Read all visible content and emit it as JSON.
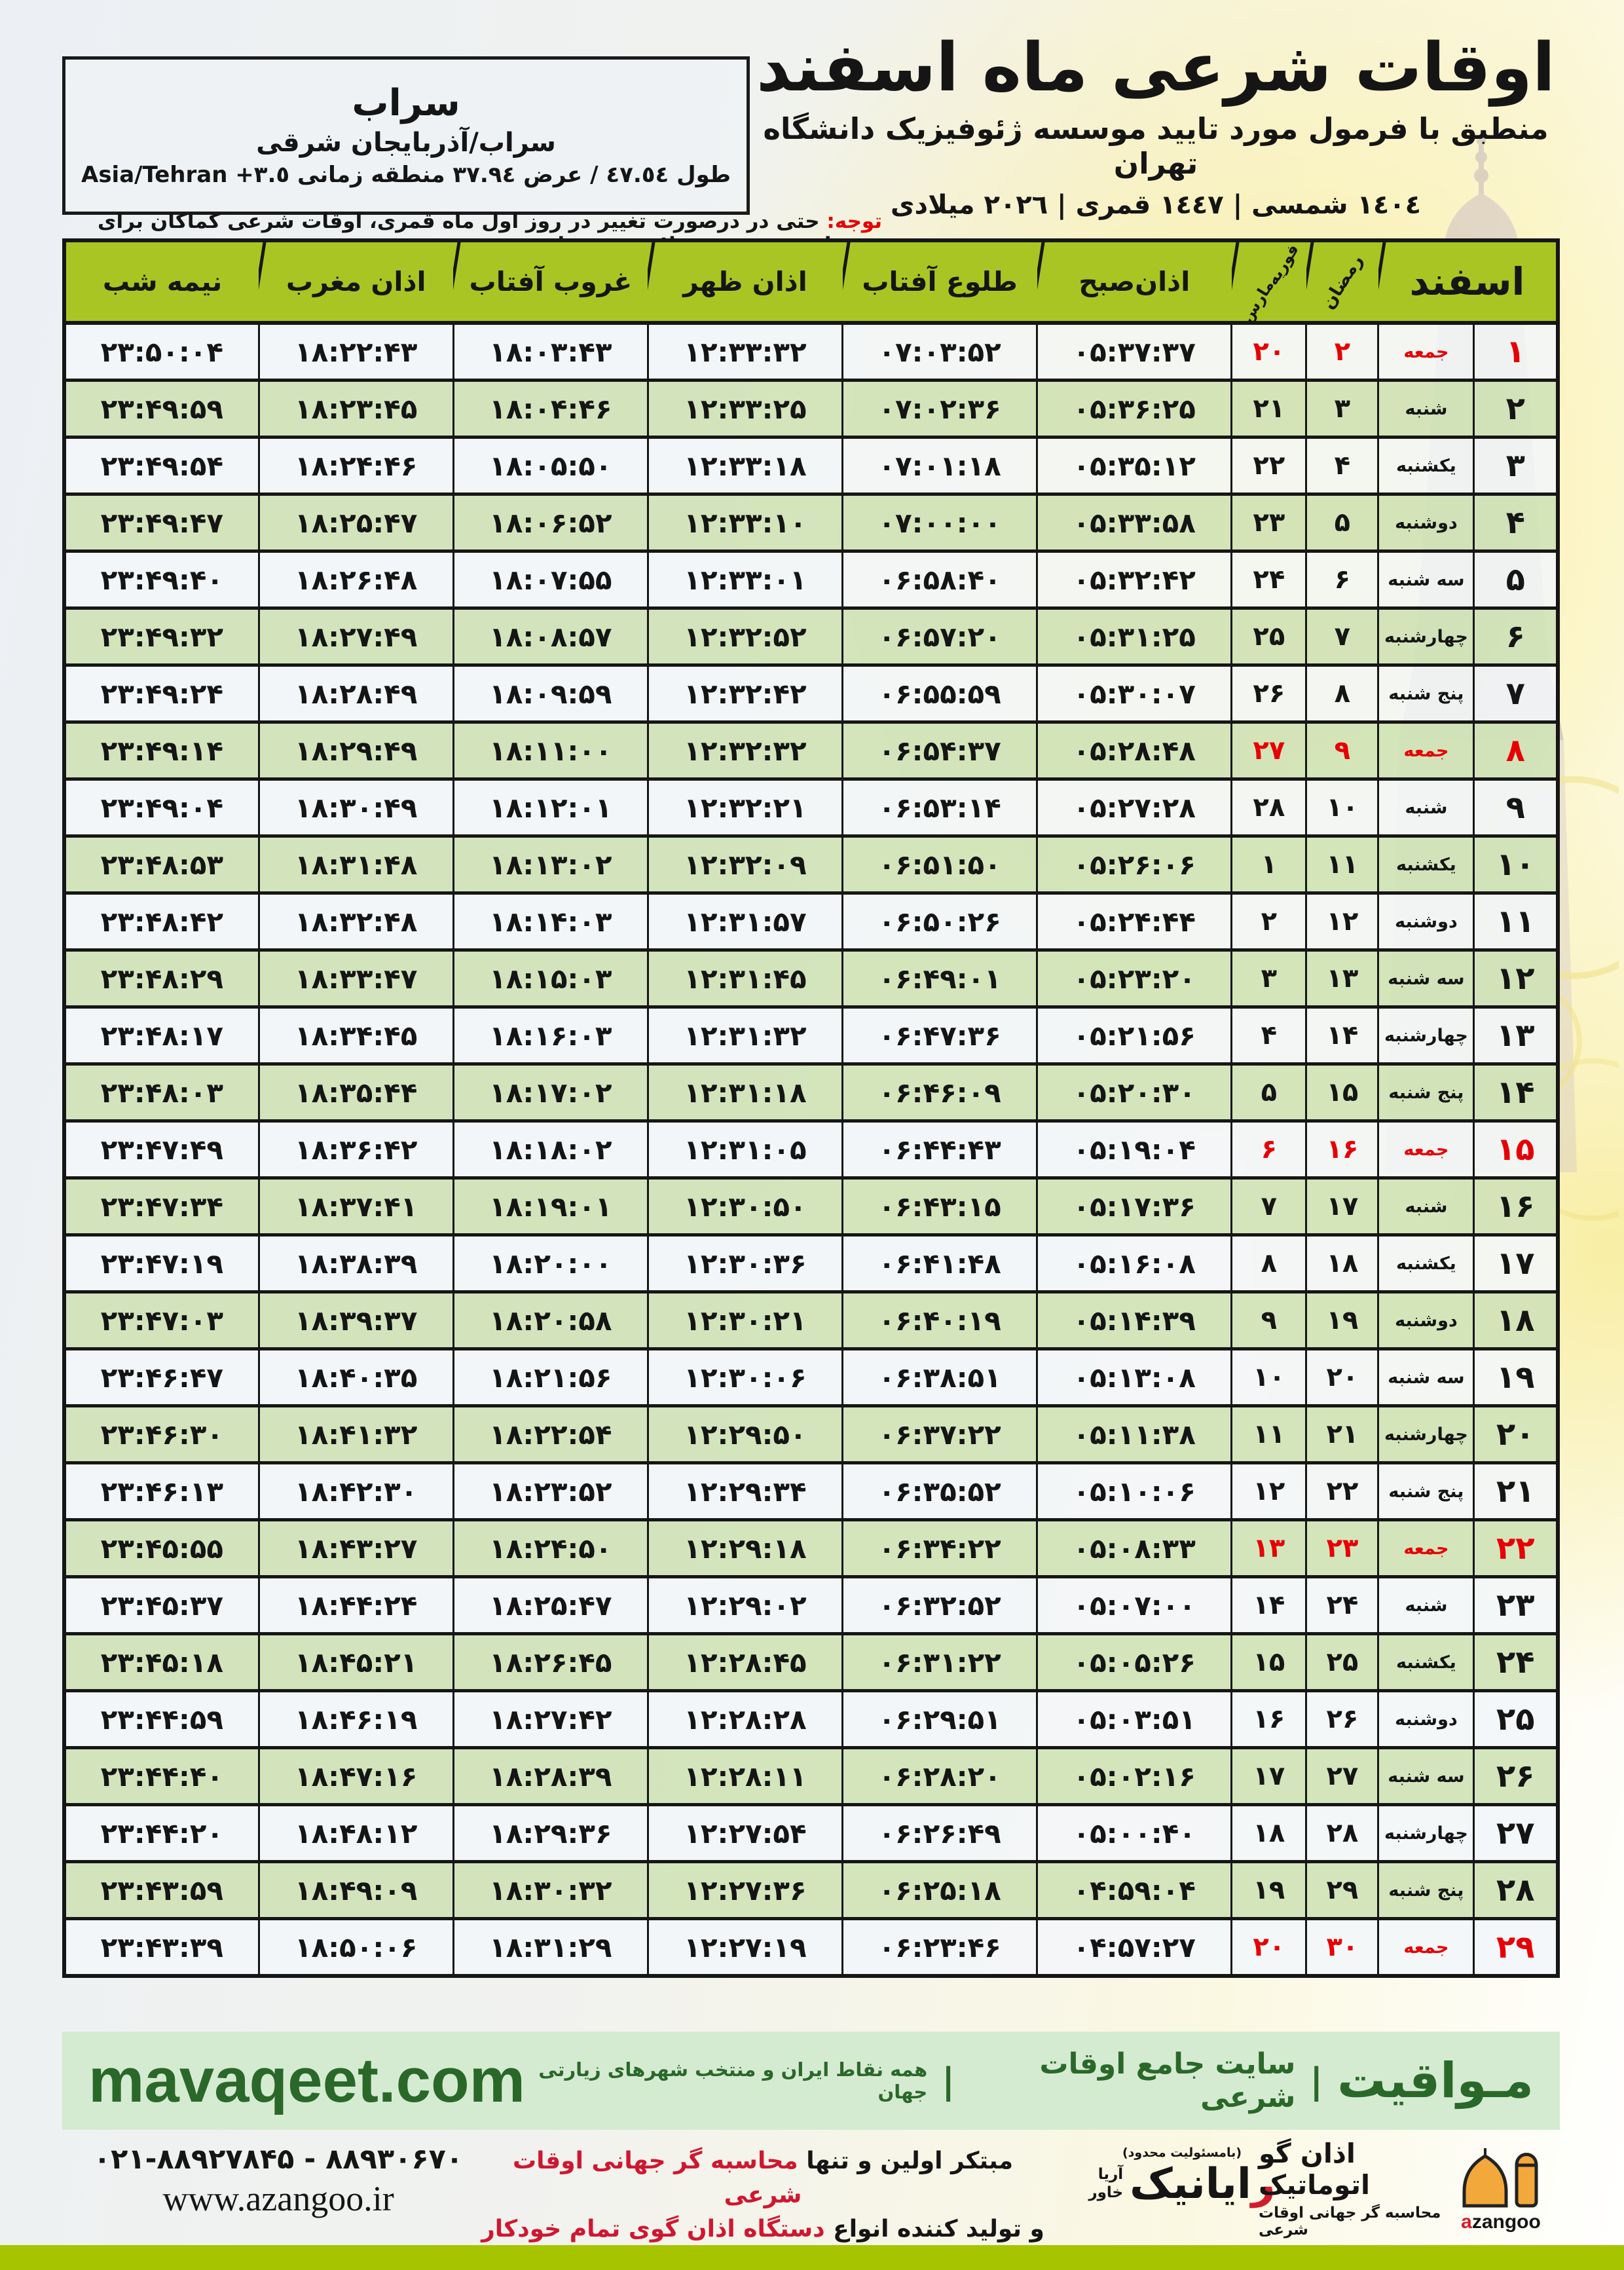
{
  "header": {
    "title": "اوقات شرعی ماه اسفند",
    "subtitle": "منطبق با فرمول مورد تایید موسسه ژئوفیزیک دانشگاه تهران",
    "date_line": "١٤٠٤ شمسی | ١٤٤٧ قمری | ٢٠٢٦ میلادی"
  },
  "city_box": {
    "city": "سراب",
    "region": "سراب/آذربایجان شرقی",
    "coords_rtl": "طول ٤٧.٥٤ / عرض ٣٧.٩٤ منطقه زمانی",
    "coords_ltr": "Asia/Tehran +٣.٥"
  },
  "notice": {
    "label": "توجه:",
    "text": "حتی در درصورت تغییر در روز اول ماه قمری، اوقات شرعی کماکان برای روزهای شمسی و میلادی معتبر است."
  },
  "table": {
    "headers": {
      "month": "اسفند",
      "ramadan": "رمضان",
      "february": "فوریه",
      "march": "مارس",
      "fajr": "اذان‌صبح",
      "sunrise": "طلوع آفتاب",
      "dhuhr": "اذان ظهر",
      "sunset": "غروب آفتاب",
      "maghrib": "اذان مغرب",
      "midnight": "نیمه شب"
    },
    "rows": [
      {
        "day": "۱",
        "weekday": "جمعه",
        "ramadan": "۲",
        "febmar": "۲۰",
        "fajr": "۰۵:۳۷:۳۷",
        "sunrise": "۰۷:۰۳:۵۲",
        "dhuhr": "۱۲:۳۳:۳۲",
        "sunset": "۱۸:۰۳:۴۳",
        "maghrib": "۱۸:۲۲:۴۳",
        "midnight": "۲۳:۵۰:۰۴",
        "friday": true
      },
      {
        "day": "۲",
        "weekday": "شنبه",
        "ramadan": "۳",
        "febmar": "۲۱",
        "fajr": "۰۵:۳۶:۲۵",
        "sunrise": "۰۷:۰۲:۳۶",
        "dhuhr": "۱۲:۳۳:۲۵",
        "sunset": "۱۸:۰۴:۴۶",
        "maghrib": "۱۸:۲۳:۴۵",
        "midnight": "۲۳:۴۹:۵۹",
        "friday": false
      },
      {
        "day": "۳",
        "weekday": "یکشنبه",
        "ramadan": "۴",
        "febmar": "۲۲",
        "fajr": "۰۵:۳۵:۱۲",
        "sunrise": "۰۷:۰۱:۱۸",
        "dhuhr": "۱۲:۳۳:۱۸",
        "sunset": "۱۸:۰۵:۵۰",
        "maghrib": "۱۸:۲۴:۴۶",
        "midnight": "۲۳:۴۹:۵۴",
        "friday": false
      },
      {
        "day": "۴",
        "weekday": "دوشنبه",
        "ramadan": "۵",
        "febmar": "۲۳",
        "fajr": "۰۵:۳۳:۵۸",
        "sunrise": "۰۷:۰۰:۰۰",
        "dhuhr": "۱۲:۳۳:۱۰",
        "sunset": "۱۸:۰۶:۵۲",
        "maghrib": "۱۸:۲۵:۴۷",
        "midnight": "۲۳:۴۹:۴۷",
        "friday": false
      },
      {
        "day": "۵",
        "weekday": "سه شنبه",
        "ramadan": "۶",
        "febmar": "۲۴",
        "fajr": "۰۵:۳۲:۴۲",
        "sunrise": "۰۶:۵۸:۴۰",
        "dhuhr": "۱۲:۳۳:۰۱",
        "sunset": "۱۸:۰۷:۵۵",
        "maghrib": "۱۸:۲۶:۴۸",
        "midnight": "۲۳:۴۹:۴۰",
        "friday": false
      },
      {
        "day": "۶",
        "weekday": "چهارشنبه",
        "ramadan": "۷",
        "febmar": "۲۵",
        "fajr": "۰۵:۳۱:۲۵",
        "sunrise": "۰۶:۵۷:۲۰",
        "dhuhr": "۱۲:۳۲:۵۲",
        "sunset": "۱۸:۰۸:۵۷",
        "maghrib": "۱۸:۲۷:۴۹",
        "midnight": "۲۳:۴۹:۳۲",
        "friday": false
      },
      {
        "day": "۷",
        "weekday": "پنج شنبه",
        "ramadan": "۸",
        "febmar": "۲۶",
        "fajr": "۰۵:۳۰:۰۷",
        "sunrise": "۰۶:۵۵:۵۹",
        "dhuhr": "۱۲:۳۲:۴۲",
        "sunset": "۱۸:۰۹:۵۹",
        "maghrib": "۱۸:۲۸:۴۹",
        "midnight": "۲۳:۴۹:۲۴",
        "friday": false
      },
      {
        "day": "۸",
        "weekday": "جمعه",
        "ramadan": "۹",
        "febmar": "۲۷",
        "fajr": "۰۵:۲۸:۴۸",
        "sunrise": "۰۶:۵۴:۳۷",
        "dhuhr": "۱۲:۳۲:۳۲",
        "sunset": "۱۸:۱۱:۰۰",
        "maghrib": "۱۸:۲۹:۴۹",
        "midnight": "۲۳:۴۹:۱۴",
        "friday": true
      },
      {
        "day": "۹",
        "weekday": "شنبه",
        "ramadan": "۱۰",
        "febmar": "۲۸",
        "fajr": "۰۵:۲۷:۲۸",
        "sunrise": "۰۶:۵۳:۱۴",
        "dhuhr": "۱۲:۳۲:۲۱",
        "sunset": "۱۸:۱۲:۰۱",
        "maghrib": "۱۸:۳۰:۴۹",
        "midnight": "۲۳:۴۹:۰۴",
        "friday": false
      },
      {
        "day": "۱۰",
        "weekday": "یکشنبه",
        "ramadan": "۱۱",
        "febmar": "۱",
        "fajr": "۰۵:۲۶:۰۶",
        "sunrise": "۰۶:۵۱:۵۰",
        "dhuhr": "۱۲:۳۲:۰۹",
        "sunset": "۱۸:۱۳:۰۲",
        "maghrib": "۱۸:۳۱:۴۸",
        "midnight": "۲۳:۴۸:۵۳",
        "friday": false
      },
      {
        "day": "۱۱",
        "weekday": "دوشنبه",
        "ramadan": "۱۲",
        "febmar": "۲",
        "fajr": "۰۵:۲۴:۴۴",
        "sunrise": "۰۶:۵۰:۲۶",
        "dhuhr": "۱۲:۳۱:۵۷",
        "sunset": "۱۸:۱۴:۰۳",
        "maghrib": "۱۸:۳۲:۴۸",
        "midnight": "۲۳:۴۸:۴۲",
        "friday": false
      },
      {
        "day": "۱۲",
        "weekday": "سه شنبه",
        "ramadan": "۱۳",
        "febmar": "۳",
        "fajr": "۰۵:۲۳:۲۰",
        "sunrise": "۰۶:۴۹:۰۱",
        "dhuhr": "۱۲:۳۱:۴۵",
        "sunset": "۱۸:۱۵:۰۳",
        "maghrib": "۱۸:۳۳:۴۷",
        "midnight": "۲۳:۴۸:۲۹",
        "friday": false
      },
      {
        "day": "۱۳",
        "weekday": "چهارشنبه",
        "ramadan": "۱۴",
        "febmar": "۴",
        "fajr": "۰۵:۲۱:۵۶",
        "sunrise": "۰۶:۴۷:۳۶",
        "dhuhr": "۱۲:۳۱:۳۲",
        "sunset": "۱۸:۱۶:۰۳",
        "maghrib": "۱۸:۳۴:۴۵",
        "midnight": "۲۳:۴۸:۱۷",
        "friday": false
      },
      {
        "day": "۱۴",
        "weekday": "پنج شنبه",
        "ramadan": "۱۵",
        "febmar": "۵",
        "fajr": "۰۵:۲۰:۳۰",
        "sunrise": "۰۶:۴۶:۰۹",
        "dhuhr": "۱۲:۳۱:۱۸",
        "sunset": "۱۸:۱۷:۰۲",
        "maghrib": "۱۸:۳۵:۴۴",
        "midnight": "۲۳:۴۸:۰۳",
        "friday": false
      },
      {
        "day": "۱۵",
        "weekday": "جمعه",
        "ramadan": "۱۶",
        "febmar": "۶",
        "fajr": "۰۵:۱۹:۰۴",
        "sunrise": "۰۶:۴۴:۴۳",
        "dhuhr": "۱۲:۳۱:۰۵",
        "sunset": "۱۸:۱۸:۰۲",
        "maghrib": "۱۸:۳۶:۴۲",
        "midnight": "۲۳:۴۷:۴۹",
        "friday": true
      },
      {
        "day": "۱۶",
        "weekday": "شنبه",
        "ramadan": "۱۷",
        "febmar": "۷",
        "fajr": "۰۵:۱۷:۳۶",
        "sunrise": "۰۶:۴۳:۱۵",
        "dhuhr": "۱۲:۳۰:۵۰",
        "sunset": "۱۸:۱۹:۰۱",
        "maghrib": "۱۸:۳۷:۴۱",
        "midnight": "۲۳:۴۷:۳۴",
        "friday": false
      },
      {
        "day": "۱۷",
        "weekday": "یکشنبه",
        "ramadan": "۱۸",
        "febmar": "۸",
        "fajr": "۰۵:۱۶:۰۸",
        "sunrise": "۰۶:۴۱:۴۸",
        "dhuhr": "۱۲:۳۰:۳۶",
        "sunset": "۱۸:۲۰:۰۰",
        "maghrib": "۱۸:۳۸:۳۹",
        "midnight": "۲۳:۴۷:۱۹",
        "friday": false
      },
      {
        "day": "۱۸",
        "weekday": "دوشنبه",
        "ramadan": "۱۹",
        "febmar": "۹",
        "fajr": "۰۵:۱۴:۳۹",
        "sunrise": "۰۶:۴۰:۱۹",
        "dhuhr": "۱۲:۳۰:۲۱",
        "sunset": "۱۸:۲۰:۵۸",
        "maghrib": "۱۸:۳۹:۳۷",
        "midnight": "۲۳:۴۷:۰۳",
        "friday": false
      },
      {
        "day": "۱۹",
        "weekday": "سه شنبه",
        "ramadan": "۲۰",
        "febmar": "۱۰",
        "fajr": "۰۵:۱۳:۰۸",
        "sunrise": "۰۶:۳۸:۵۱",
        "dhuhr": "۱۲:۳۰:۰۶",
        "sunset": "۱۸:۲۱:۵۶",
        "maghrib": "۱۸:۴۰:۳۵",
        "midnight": "۲۳:۴۶:۴۷",
        "friday": false
      },
      {
        "day": "۲۰",
        "weekday": "چهارشنبه",
        "ramadan": "۲۱",
        "febmar": "۱۱",
        "fajr": "۰۵:۱۱:۳۸",
        "sunrise": "۰۶:۳۷:۲۲",
        "dhuhr": "۱۲:۲۹:۵۰",
        "sunset": "۱۸:۲۲:۵۴",
        "maghrib": "۱۸:۴۱:۳۲",
        "midnight": "۲۳:۴۶:۳۰",
        "friday": false
      },
      {
        "day": "۲۱",
        "weekday": "پنج شنبه",
        "ramadan": "۲۲",
        "febmar": "۱۲",
        "fajr": "۰۵:۱۰:۰۶",
        "sunrise": "۰۶:۳۵:۵۲",
        "dhuhr": "۱۲:۲۹:۳۴",
        "sunset": "۱۸:۲۳:۵۲",
        "maghrib": "۱۸:۴۲:۳۰",
        "midnight": "۲۳:۴۶:۱۳",
        "friday": false
      },
      {
        "day": "۲۲",
        "weekday": "جمعه",
        "ramadan": "۲۳",
        "febmar": "۱۳",
        "fajr": "۰۵:۰۸:۳۳",
        "sunrise": "۰۶:۳۴:۲۲",
        "dhuhr": "۱۲:۲۹:۱۸",
        "sunset": "۱۸:۲۴:۵۰",
        "maghrib": "۱۸:۴۳:۲۷",
        "midnight": "۲۳:۴۵:۵۵",
        "friday": true
      },
      {
        "day": "۲۳",
        "weekday": "شنبه",
        "ramadan": "۲۴",
        "febmar": "۱۴",
        "fajr": "۰۵:۰۷:۰۰",
        "sunrise": "۰۶:۳۲:۵۲",
        "dhuhr": "۱۲:۲۹:۰۲",
        "sunset": "۱۸:۲۵:۴۷",
        "maghrib": "۱۸:۴۴:۲۴",
        "midnight": "۲۳:۴۵:۳۷",
        "friday": false
      },
      {
        "day": "۲۴",
        "weekday": "یکشنبه",
        "ramadan": "۲۵",
        "febmar": "۱۵",
        "fajr": "۰۵:۰۵:۲۶",
        "sunrise": "۰۶:۳۱:۲۲",
        "dhuhr": "۱۲:۲۸:۴۵",
        "sunset": "۱۸:۲۶:۴۵",
        "maghrib": "۱۸:۴۵:۲۱",
        "midnight": "۲۳:۴۵:۱۸",
        "friday": false
      },
      {
        "day": "۲۵",
        "weekday": "دوشنبه",
        "ramadan": "۲۶",
        "febmar": "۱۶",
        "fajr": "۰۵:۰۳:۵۱",
        "sunrise": "۰۶:۲۹:۵۱",
        "dhuhr": "۱۲:۲۸:۲۸",
        "sunset": "۱۸:۲۷:۴۲",
        "maghrib": "۱۸:۴۶:۱۹",
        "midnight": "۲۳:۴۴:۵۹",
        "friday": false
      },
      {
        "day": "۲۶",
        "weekday": "سه شنبه",
        "ramadan": "۲۷",
        "febmar": "۱۷",
        "fajr": "۰۵:۰۲:۱۶",
        "sunrise": "۰۶:۲۸:۲۰",
        "dhuhr": "۱۲:۲۸:۱۱",
        "sunset": "۱۸:۲۸:۳۹",
        "maghrib": "۱۸:۴۷:۱۶",
        "midnight": "۲۳:۴۴:۴۰",
        "friday": false
      },
      {
        "day": "۲۷",
        "weekday": "چهارشنبه",
        "ramadan": "۲۸",
        "febmar": "۱۸",
        "fajr": "۰۵:۰۰:۴۰",
        "sunrise": "۰۶:۲۶:۴۹",
        "dhuhr": "۱۲:۲۷:۵۴",
        "sunset": "۱۸:۲۹:۳۶",
        "maghrib": "۱۸:۴۸:۱۲",
        "midnight": "۲۳:۴۴:۲۰",
        "friday": false
      },
      {
        "day": "۲۸",
        "weekday": "پنج شنبه",
        "ramadan": "۲۹",
        "febmar": "۱۹",
        "fajr": "۰۴:۵۹:۰۴",
        "sunrise": "۰۶:۲۵:۱۸",
        "dhuhr": "۱۲:۲۷:۳۶",
        "sunset": "۱۸:۳۰:۳۲",
        "maghrib": "۱۸:۴۹:۰۹",
        "midnight": "۲۳:۴۳:۵۹",
        "friday": false
      },
      {
        "day": "۲۹",
        "weekday": "جمعه",
        "ramadan": "۳۰",
        "febmar": "۲۰",
        "fajr": "۰۴:۵۷:۲۷",
        "sunrise": "۰۶:۲۳:۴۶",
        "dhuhr": "۱۲:۲۷:۱۹",
        "sunset": "۱۸:۳۱:۲۹",
        "maghrib": "۱۸:۵۰:۰۶",
        "midnight": "۲۳:۴۳:۳۹",
        "friday": true
      }
    ]
  },
  "mavaqeet": {
    "brand": "مـواقیت",
    "separator": "|",
    "tagline": "سایت جامع اوقات شرعی",
    "subtag": "همه نقاط ایران و منتخب شهرهای زیارتی جهان",
    "site": "mavaqeet.com"
  },
  "footer": {
    "phone": "۰۲۱-۸۸۹۲۷۸۴۵ - ۸۸۹۳۰۶۷۰",
    "website": "www.azangoo.ir",
    "line1_black": "مبتکر اولین و تنها",
    "line1_red": "محاسبه گر جهانی اوقات شرعی",
    "line2_black": "و تولید کننده انواع",
    "line2_red": "دستگاه اذان گوی تمام خودکار ماهواره ای",
    "rayanik_note": "(بامسئولیت محدود)",
    "rayanik_name_initial": "ر",
    "rayanik_name_rest": "ایانیک",
    "rayanik_sub1": "خاور",
    "rayanik_sub2": "آریا",
    "azangoo_title": "اذان گو اتوماتیک",
    "azangoo_sub": "محاسبه گر جهانی اوقات شرعی",
    "azangoo_latin_a": "a",
    "azangoo_latin_rest": "zangoo"
  },
  "colors": {
    "header_green": "#a9c524",
    "row_green": "#d1e3b8",
    "friday_red": "#e60005",
    "footer_bar_green": "#a6c400",
    "mavaqeet_green": "#2a682a",
    "mavaqeet_bg": "#d5ebd1",
    "accent_red": "#cf1730",
    "azangoo_orange": "#f3a83b"
  }
}
